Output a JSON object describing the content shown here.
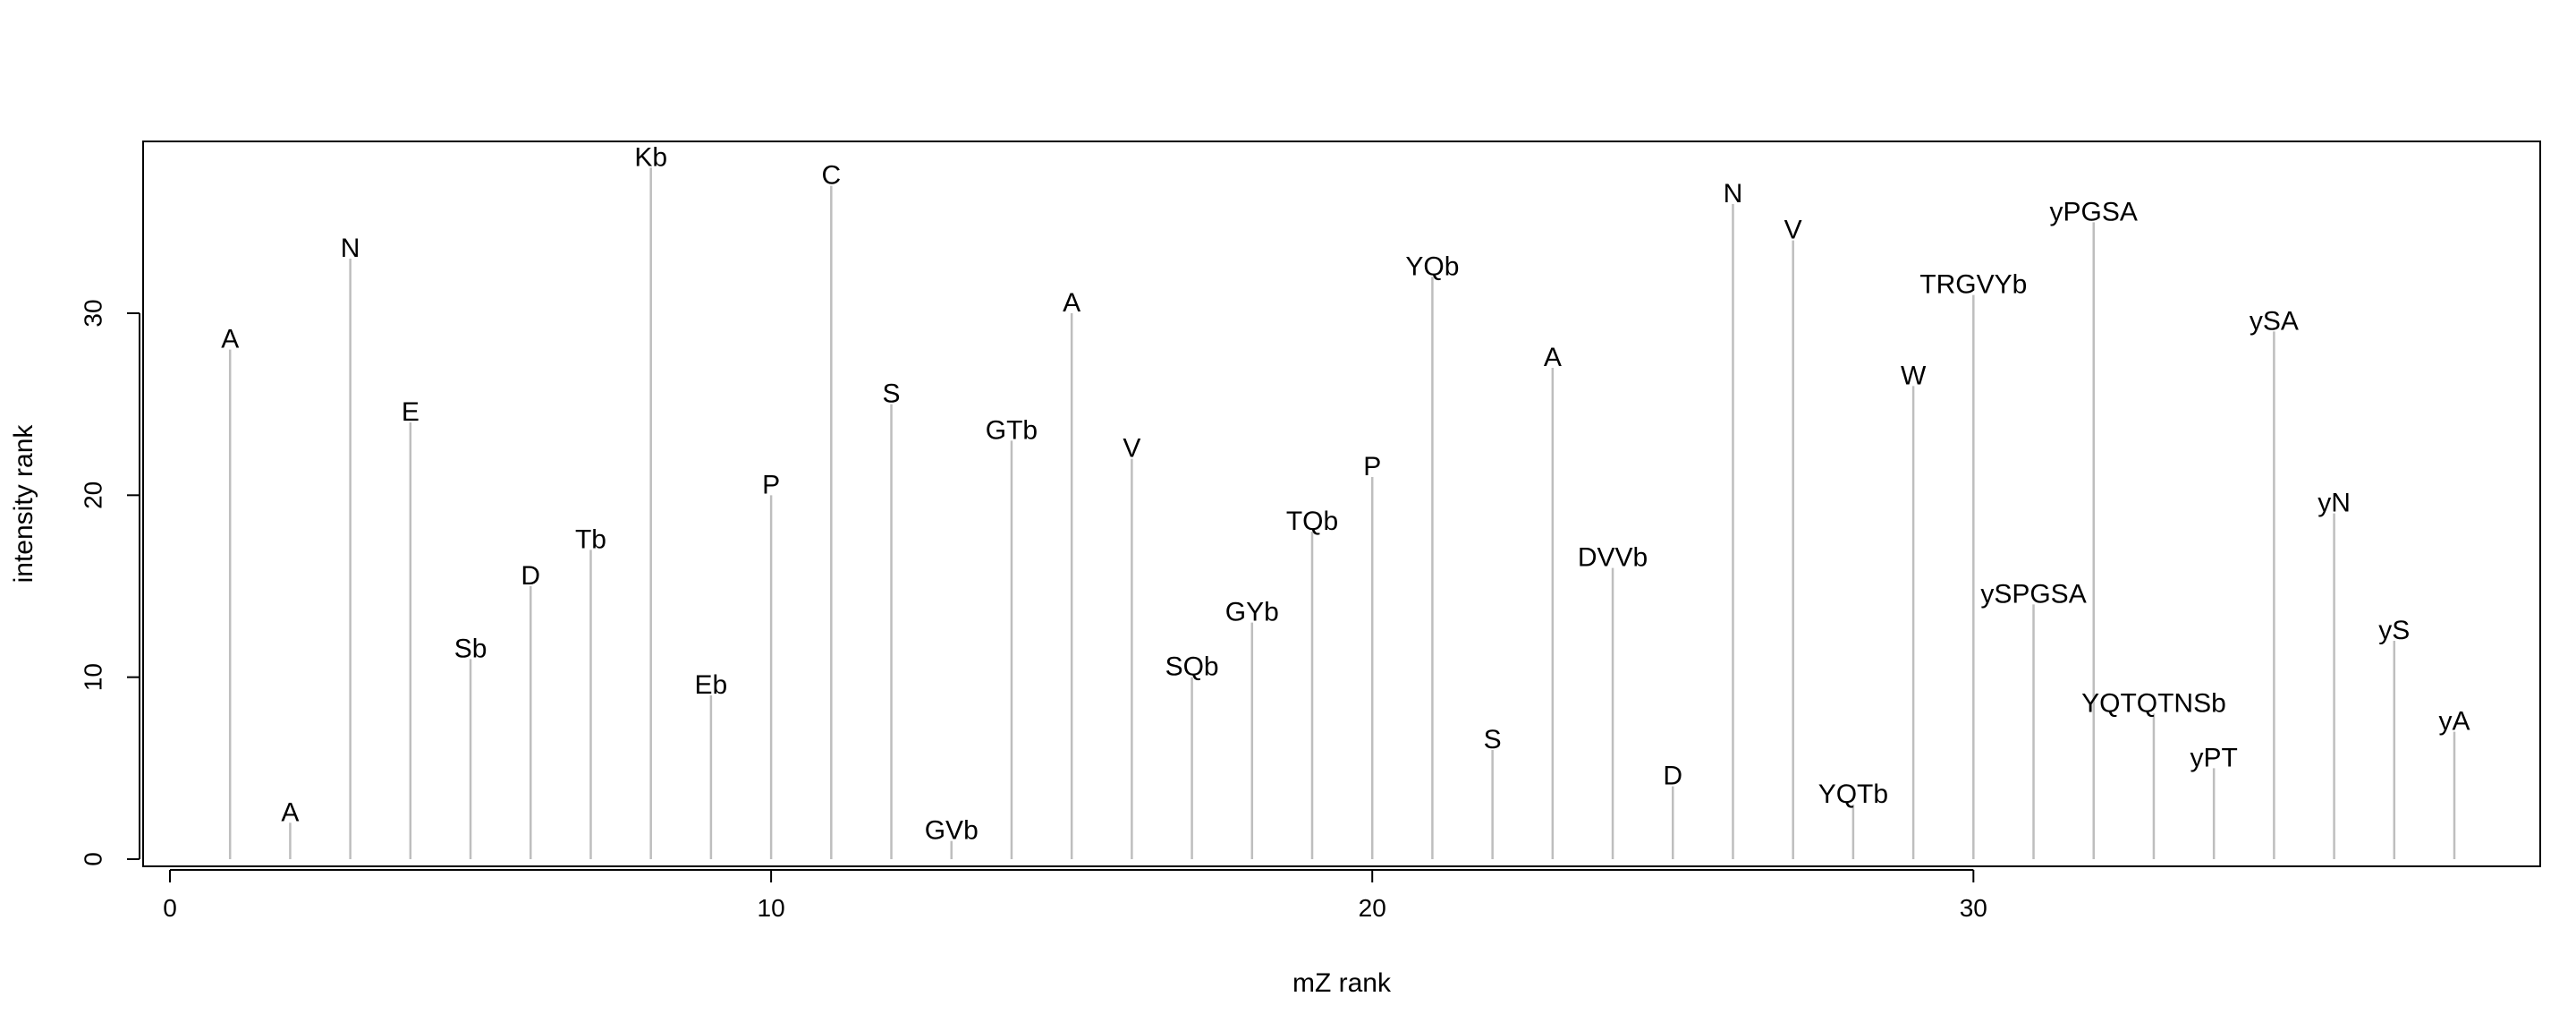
{
  "chart_data": {
    "type": "bar",
    "subtype": "spike",
    "xlabel": "mZ rank",
    "ylabel": "intensity rank",
    "xlim": [
      -0.5,
      39
    ],
    "ylim": [
      -0.5,
      40
    ],
    "x_ticks": [
      0,
      10,
      20,
      30
    ],
    "y_ticks": [
      0,
      10,
      20,
      30
    ],
    "grid": false,
    "legend": "none",
    "spike_color": "#bebebe",
    "points": [
      {
        "x": 1,
        "y": 28,
        "label": "A"
      },
      {
        "x": 2,
        "y": 2,
        "label": "A"
      },
      {
        "x": 3,
        "y": 33,
        "label": "N"
      },
      {
        "x": 4,
        "y": 24,
        "label": "E"
      },
      {
        "x": 5,
        "y": 11,
        "label": "Sb"
      },
      {
        "x": 6,
        "y": 15,
        "label": "D"
      },
      {
        "x": 7,
        "y": 17,
        "label": "Tb"
      },
      {
        "x": 8,
        "y": 38,
        "label": "Kb"
      },
      {
        "x": 9,
        "y": 9,
        "label": "Eb"
      },
      {
        "x": 10,
        "y": 20,
        "label": "P"
      },
      {
        "x": 11,
        "y": 37,
        "label": "C"
      },
      {
        "x": 12,
        "y": 25,
        "label": "S"
      },
      {
        "x": 13,
        "y": 1,
        "label": "GVb"
      },
      {
        "x": 14,
        "y": 23,
        "label": "GTb"
      },
      {
        "x": 15,
        "y": 30,
        "label": "A"
      },
      {
        "x": 16,
        "y": 22,
        "label": "V"
      },
      {
        "x": 17,
        "y": 10,
        "label": "SQb"
      },
      {
        "x": 18,
        "y": 13,
        "label": "GYb"
      },
      {
        "x": 19,
        "y": 18,
        "label": "TQb"
      },
      {
        "x": 20,
        "y": 21,
        "label": "P"
      },
      {
        "x": 21,
        "y": 32,
        "label": "YQb"
      },
      {
        "x": 22,
        "y": 6,
        "label": "S"
      },
      {
        "x": 23,
        "y": 27,
        "label": "A"
      },
      {
        "x": 24,
        "y": 16,
        "label": "DVVb"
      },
      {
        "x": 25,
        "y": 4,
        "label": "D"
      },
      {
        "x": 26,
        "y": 36,
        "label": "N"
      },
      {
        "x": 27,
        "y": 34,
        "label": "V"
      },
      {
        "x": 28,
        "y": 3,
        "label": "YQTb"
      },
      {
        "x": 29,
        "y": 26,
        "label": "W"
      },
      {
        "x": 30,
        "y": 31,
        "label": "TRGVYb"
      },
      {
        "x": 31,
        "y": 14,
        "label": "ySPGSA"
      },
      {
        "x": 32,
        "y": 35,
        "label": "yPGSA"
      },
      {
        "x": 33,
        "y": 8,
        "label": "YQTQTNSb"
      },
      {
        "x": 34,
        "y": 5,
        "label": "yPT"
      },
      {
        "x": 35,
        "y": 29,
        "label": "ySA"
      },
      {
        "x": 36,
        "y": 19,
        "label": "yN"
      },
      {
        "x": 37,
        "y": 12,
        "label": "yS"
      },
      {
        "x": 38,
        "y": 7,
        "label": "yA"
      }
    ]
  }
}
